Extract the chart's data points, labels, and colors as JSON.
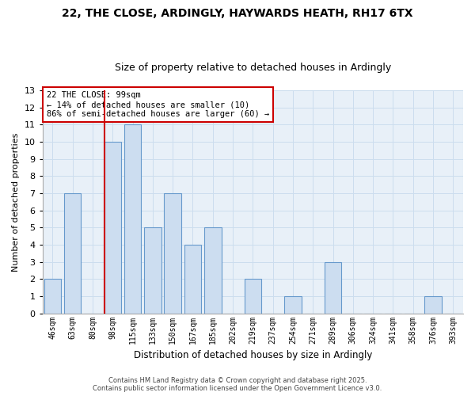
{
  "title": "22, THE CLOSE, ARDINGLY, HAYWARDS HEATH, RH17 6TX",
  "subtitle": "Size of property relative to detached houses in Ardingly",
  "xlabel": "Distribution of detached houses by size in Ardingly",
  "ylabel": "Number of detached properties",
  "bin_labels": [
    "46sqm",
    "63sqm",
    "80sqm",
    "98sqm",
    "115sqm",
    "133sqm",
    "150sqm",
    "167sqm",
    "185sqm",
    "202sqm",
    "219sqm",
    "237sqm",
    "254sqm",
    "271sqm",
    "289sqm",
    "306sqm",
    "324sqm",
    "341sqm",
    "358sqm",
    "376sqm",
    "393sqm"
  ],
  "bar_values": [
    2,
    7,
    0,
    10,
    11,
    5,
    7,
    4,
    5,
    0,
    2,
    0,
    1,
    0,
    3,
    0,
    0,
    0,
    0,
    1,
    0
  ],
  "bar_color": "#ccddf0",
  "bar_edge_color": "#6699cc",
  "highlight_line_index": 3,
  "annotation_line1": "22 THE CLOSE: 99sqm",
  "annotation_line2": "← 14% of detached houses are smaller (10)",
  "annotation_line3": "86% of semi-detached houses are larger (60) →",
  "annotation_box_color": "#ffffff",
  "annotation_box_edge": "#cc0000",
  "highlight_line_color": "#cc0000",
  "ylim": [
    0,
    13
  ],
  "yticks": [
    0,
    1,
    2,
    3,
    4,
    5,
    6,
    7,
    8,
    9,
    10,
    11,
    12,
    13
  ],
  "grid_color": "#ccddee",
  "bg_color": "#e8f0f8",
  "footer_line1": "Contains HM Land Registry data © Crown copyright and database right 2025.",
  "footer_line2": "Contains public sector information licensed under the Open Government Licence v3.0.",
  "title_fontsize": 10,
  "subtitle_fontsize": 9,
  "ylabel_fontsize": 8,
  "xlabel_fontsize": 8.5,
  "tick_fontsize": 7,
  "footer_fontsize": 6
}
